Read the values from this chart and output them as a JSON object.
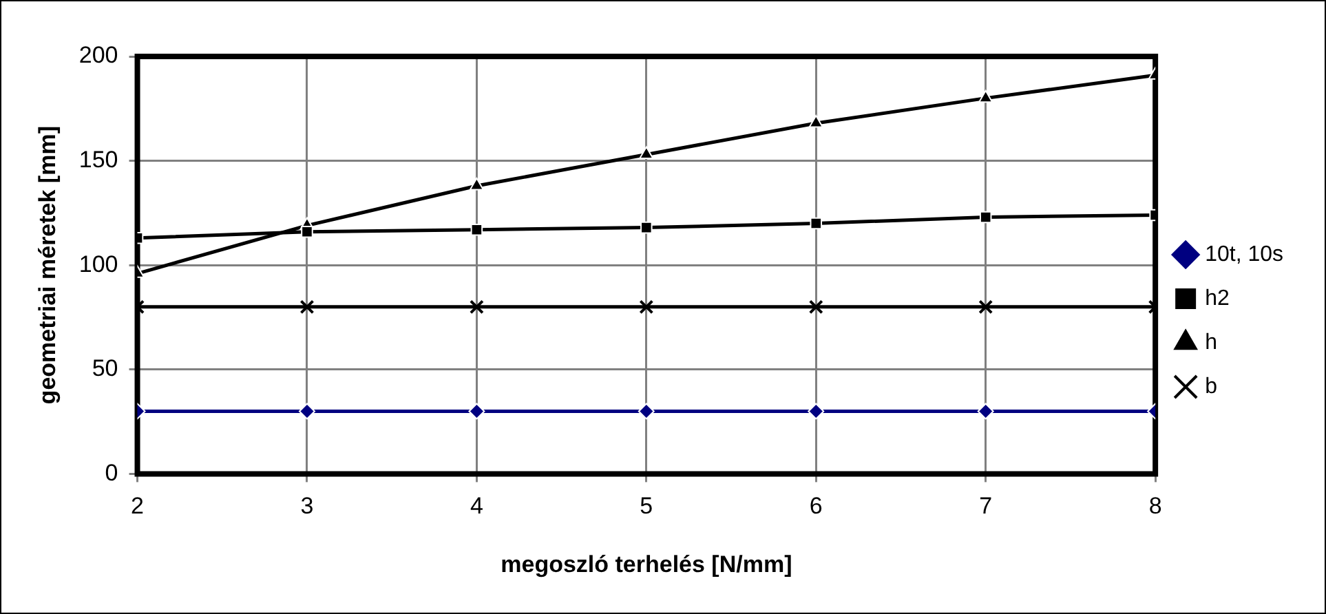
{
  "chart_data": {
    "type": "line",
    "xlabel": "megoszló terhelés [N/mm]",
    "ylabel": "geometriai méretek [mm]",
    "x": [
      2,
      3,
      4,
      5,
      6,
      7,
      8
    ],
    "xlim": [
      2,
      8
    ],
    "xticks": [
      2,
      3,
      4,
      5,
      6,
      7,
      8
    ],
    "ylim": [
      0,
      200
    ],
    "yticks": [
      0,
      50,
      100,
      150,
      200
    ],
    "grid": true,
    "legend": "right",
    "line_style": "solid",
    "series": [
      {
        "name": "10t, 10s",
        "color": "#000080",
        "marker": "diamond",
        "values": [
          30,
          30,
          30,
          30,
          30,
          30,
          30
        ]
      },
      {
        "name": "h2",
        "color": "#000000",
        "marker": "square",
        "values": [
          113,
          116,
          117,
          118,
          120,
          123,
          124
        ]
      },
      {
        "name": "h",
        "color": "#000000",
        "marker": "triangle",
        "values": [
          96,
          119,
          138,
          153,
          168,
          180,
          191
        ]
      },
      {
        "name": "b",
        "color": "#000000",
        "marker": "cross",
        "values": [
          80,
          80,
          80,
          80,
          80,
          80,
          80
        ]
      }
    ]
  }
}
